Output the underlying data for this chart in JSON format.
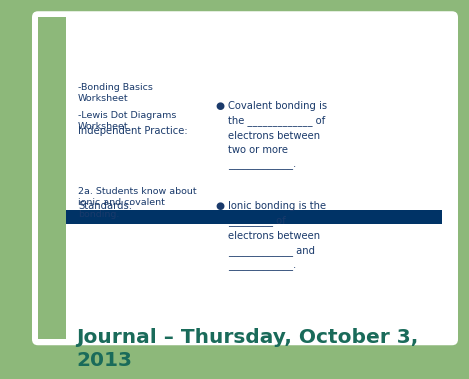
{
  "title": "Journal – Thursday, October 3,\n2013",
  "title_color": "#1a6b5a",
  "title_fontsize": 14.5,
  "bg_color": "#8db87a",
  "slide_bg": "#ffffff",
  "left_bar_color": "#8db87a",
  "divider_color": "#003366",
  "text_color": "#1a3a6b",
  "bullet_color": "#1a3a6b",
  "standards_header": "Standards:",
  "standards_body": "2a. Students know about\nionic and covalent\nbonding.",
  "practice_header": "Independent Practice:",
  "practice_item1": "-Lewis Dot Diagrams\nWorksheet",
  "practice_item2": "-Bonding Basics\nWorksheet",
  "bullet1_text": "Ionic bonding is the\n_________ of\nelectrons between\n_____________ and\n_____________.",
  "bullet2_text": "Covalent bonding is\nthe _____________ of\nelectrons between\ntwo or more\n_____________."
}
